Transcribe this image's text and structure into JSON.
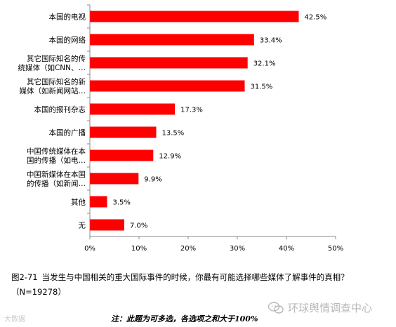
{
  "chart_data": {
    "type": "bar",
    "orientation": "horizontal",
    "categories": [
      [
        "本国的电视"
      ],
      [
        "本国的网络"
      ],
      [
        "其它国际知名的传",
        "统媒体（如CNN、…"
      ],
      [
        "其它国际知名的新",
        "媒体（如新闻网站…"
      ],
      [
        "本国的报刊杂志"
      ],
      [
        "本国的广播"
      ],
      [
        "中国传统媒体在本",
        "国的传播（如电…"
      ],
      [
        "中国新媒体在本国",
        "的传播（如新闻…"
      ],
      [
        "其他"
      ],
      [
        "无"
      ]
    ],
    "values": [
      42.5,
      33.4,
      32.1,
      31.5,
      17.3,
      13.5,
      12.9,
      9.9,
      3.5,
      7.0
    ],
    "value_labels": [
      "42.5%",
      "33.4%",
      "32.1%",
      "31.5%",
      "17.3%",
      "13.5%",
      "12.9%",
      "9.9%",
      "3.5%",
      "7.0%"
    ],
    "xlim": [
      0,
      50
    ],
    "x_ticks": [
      "0%",
      "10%",
      "20%",
      "30%",
      "40%",
      "50%"
    ],
    "bar_color": "#ff0000",
    "grid": false
  },
  "caption": {
    "number": "图2-71",
    "text": "当发生与中国相关的重大国际事件的时候，你最有可能选择哪些媒体了解事件的真相？（N=19278）"
  },
  "note": "注：此题为可多选，各选项之和大于100%",
  "brand": "环球舆情调查中心",
  "watermark": "大数据"
}
